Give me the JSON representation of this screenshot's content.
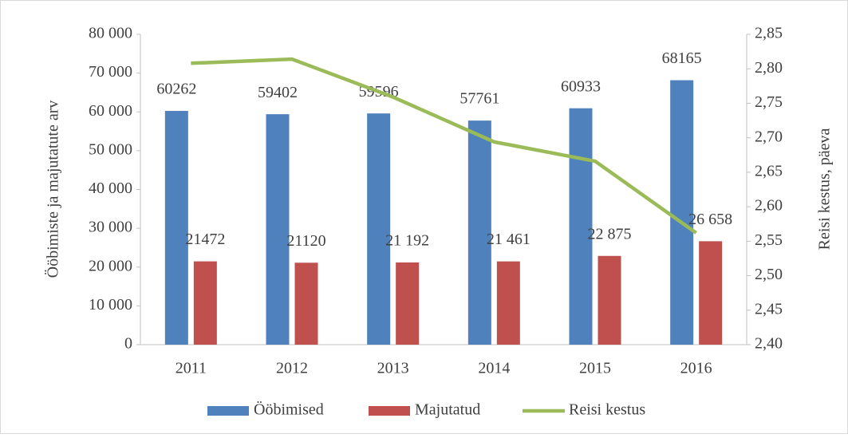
{
  "chart_data": {
    "type": "bar",
    "categories": [
      "2011",
      "2012",
      "2013",
      "2014",
      "2015",
      "2016"
    ],
    "series": [
      {
        "name": "Ööbimised",
        "color": "#4f81bd",
        "type": "bar",
        "values": [
          60262,
          59402,
          59596,
          57761,
          60933,
          68165
        ]
      },
      {
        "name": "Majutatud",
        "color": "#c0504d",
        "type": "bar",
        "values": [
          21472,
          21120,
          21192,
          21461,
          22875,
          26658
        ],
        "value_labels": [
          "21472",
          "21120",
          "21 192",
          "21 461",
          "22 875",
          "26 658"
        ]
      },
      {
        "name": "Reisi kestus",
        "color": "#9bbb59",
        "type": "line",
        "axis": "y2",
        "values": [
          2.808,
          2.814,
          2.759,
          2.694,
          2.666,
          2.562
        ]
      }
    ],
    "ylabel": "Ööbimiste ja majutatute arv",
    "y2label": "Reisi kestus, päeva",
    "ylim": [
      0,
      80000
    ],
    "yticks": [
      0,
      {
        "value": 10000,
        "label": "10 000"
      },
      {
        "value": 20000,
        "label": "20 000"
      },
      {
        "value": 30000,
        "label": "30 000"
      },
      {
        "value": 40000,
        "label": "40 000"
      },
      {
        "value": 50000,
        "label": "50 000"
      },
      {
        "value": 60000,
        "label": "60 000"
      },
      {
        "value": 70000,
        "label": "70 000"
      },
      {
        "value": 80000,
        "label": "80 000"
      }
    ],
    "y2lim": [
      2.4,
      2.85
    ],
    "y2ticks": [
      {
        "value": 2.4,
        "label": "2,40"
      },
      {
        "value": 2.45,
        "label": "2,45"
      },
      {
        "value": 2.5,
        "label": "2,50"
      },
      {
        "value": 2.55,
        "label": "2,55"
      },
      {
        "value": 2.6,
        "label": "2,60"
      },
      {
        "value": 2.65,
        "label": "2,65"
      },
      {
        "value": 2.7,
        "label": "2,70"
      },
      {
        "value": 2.75,
        "label": "2,75"
      },
      {
        "value": 2.8,
        "label": "2,80"
      },
      {
        "value": 2.85,
        "label": "2,85"
      }
    ],
    "legend": "bottom"
  }
}
